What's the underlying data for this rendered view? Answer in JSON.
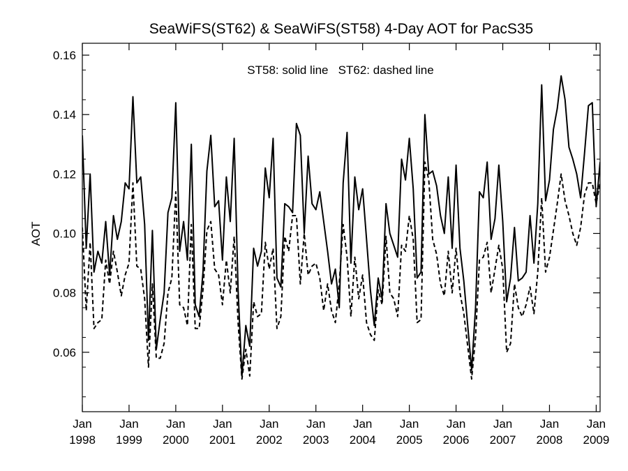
{
  "chart_data": {
    "type": "line",
    "title": "SeaWiFS(ST62) & SeaWiFS(ST58) 4-Day AOT for PacS35",
    "annotation": "ST58: solid line   ST62: dashed line",
    "xlabel": "",
    "ylabel": "AOT",
    "xlim": [
      "1998-01-01",
      "2009-02-01"
    ],
    "ylim": [
      0.04,
      0.164
    ],
    "yticks": [
      "0.06",
      "0.08",
      "0.10",
      "0.12",
      "0.14",
      "0.16"
    ],
    "xticks": [
      {
        "month": "Jan",
        "year": "1998"
      },
      {
        "month": "Jan",
        "year": "1999"
      },
      {
        "month": "Jan",
        "year": "2000"
      },
      {
        "month": "Jan",
        "year": "2001"
      },
      {
        "month": "Jan",
        "year": "2002"
      },
      {
        "month": "Jan",
        "year": "2003"
      },
      {
        "month": "Jan",
        "year": "2004"
      },
      {
        "month": "Jan",
        "year": "2005"
      },
      {
        "month": "Jan",
        "year": "2006"
      },
      {
        "month": "Jan",
        "year": "2007"
      },
      {
        "month": "Jan",
        "year": "2008"
      },
      {
        "month": "Jan",
        "year": "2009"
      }
    ],
    "series": [
      {
        "name": "ST58",
        "style": "solid",
        "color": "#000000",
        "points": [
          [
            "1998-01-01",
            0.133
          ],
          [
            "1998-02-01",
            0.095
          ],
          [
            "1998-03-01",
            0.12
          ],
          [
            "1998-04-01",
            0.087
          ],
          [
            "1998-05-01",
            0.094
          ],
          [
            "1998-06-01",
            0.09
          ],
          [
            "1998-07-01",
            0.104
          ],
          [
            "1998-08-01",
            0.086
          ],
          [
            "1998-09-01",
            0.106
          ],
          [
            "1998-10-01",
            0.098
          ],
          [
            "1998-11-01",
            0.104
          ],
          [
            "1998-12-01",
            0.117
          ],
          [
            "1999-01-01",
            0.115
          ],
          [
            "1999-02-01",
            0.146
          ],
          [
            "1999-03-01",
            0.117
          ],
          [
            "1999-04-01",
            0.119
          ],
          [
            "1999-05-01",
            0.103
          ],
          [
            "1999-06-01",
            0.064
          ],
          [
            "1999-07-01",
            0.101
          ],
          [
            "1999-08-01",
            0.061
          ],
          [
            "1999-09-01",
            0.071
          ],
          [
            "1999-10-01",
            0.08
          ],
          [
            "1999-11-01",
            0.107
          ],
          [
            "1999-12-01",
            0.112
          ],
          [
            "2000-01-01",
            0.144
          ],
          [
            "2000-02-01",
            0.094
          ],
          [
            "2000-03-01",
            0.104
          ],
          [
            "2000-04-01",
            0.091
          ],
          [
            "2000-05-01",
            0.13
          ],
          [
            "2000-06-01",
            0.076
          ],
          [
            "2000-07-01",
            0.072
          ],
          [
            "2000-08-01",
            0.087
          ],
          [
            "2000-09-01",
            0.121
          ],
          [
            "2000-10-01",
            0.133
          ],
          [
            "2000-11-01",
            0.109
          ],
          [
            "2000-12-01",
            0.111
          ],
          [
            "2001-01-01",
            0.091
          ],
          [
            "2001-02-01",
            0.119
          ],
          [
            "2001-03-01",
            0.104
          ],
          [
            "2001-04-01",
            0.132
          ],
          [
            "2001-05-01",
            0.081
          ],
          [
            "2001-06-01",
            0.052
          ],
          [
            "2001-07-01",
            0.069
          ],
          [
            "2001-08-01",
            0.062
          ],
          [
            "2001-09-01",
            0.095
          ],
          [
            "2001-10-01",
            0.089
          ],
          [
            "2001-11-01",
            0.094
          ],
          [
            "2001-12-01",
            0.122
          ],
          [
            "2002-01-01",
            0.112
          ],
          [
            "2002-02-01",
            0.132
          ],
          [
            "2002-03-01",
            0.085
          ],
          [
            "2002-04-01",
            0.082
          ],
          [
            "2002-05-01",
            0.11
          ],
          [
            "2002-06-01",
            0.109
          ],
          [
            "2002-07-01",
            0.107
          ],
          [
            "2002-08-01",
            0.137
          ],
          [
            "2002-09-01",
            0.133
          ],
          [
            "2002-10-01",
            0.1
          ],
          [
            "2002-11-01",
            0.126
          ],
          [
            "2002-12-01",
            0.11
          ],
          [
            "2003-01-01",
            0.108
          ],
          [
            "2003-02-01",
            0.114
          ],
          [
            "2003-03-01",
            0.104
          ],
          [
            "2003-04-01",
            0.094
          ],
          [
            "2003-05-01",
            0.083
          ],
          [
            "2003-06-01",
            0.088
          ],
          [
            "2003-07-01",
            0.075
          ],
          [
            "2003-08-01",
            0.117
          ],
          [
            "2003-09-01",
            0.134
          ],
          [
            "2003-10-01",
            0.09
          ],
          [
            "2003-11-01",
            0.119
          ],
          [
            "2003-12-01",
            0.108
          ],
          [
            "2004-01-01",
            0.115
          ],
          [
            "2004-02-01",
            0.098
          ],
          [
            "2004-03-01",
            0.081
          ],
          [
            "2004-04-01",
            0.069
          ],
          [
            "2004-05-01",
            0.085
          ],
          [
            "2004-06-01",
            0.078
          ],
          [
            "2004-07-01",
            0.11
          ],
          [
            "2004-08-01",
            0.1
          ],
          [
            "2004-09-01",
            0.096
          ],
          [
            "2004-10-01",
            0.092
          ],
          [
            "2004-11-01",
            0.125
          ],
          [
            "2004-12-01",
            0.118
          ],
          [
            "2005-01-01",
            0.132
          ],
          [
            "2005-02-01",
            0.115
          ],
          [
            "2005-03-01",
            0.085
          ],
          [
            "2005-04-01",
            0.087
          ],
          [
            "2005-05-01",
            0.14
          ],
          [
            "2005-06-01",
            0.12
          ],
          [
            "2005-07-01",
            0.121
          ],
          [
            "2005-08-01",
            0.116
          ],
          [
            "2005-09-01",
            0.106
          ],
          [
            "2005-10-01",
            0.1
          ],
          [
            "2005-11-01",
            0.119
          ],
          [
            "2005-12-01",
            0.095
          ],
          [
            "2006-01-01",
            0.123
          ],
          [
            "2006-02-01",
            0.095
          ],
          [
            "2006-03-01",
            0.084
          ],
          [
            "2006-04-01",
            0.069
          ],
          [
            "2006-05-01",
            0.054
          ],
          [
            "2006-06-01",
            0.075
          ],
          [
            "2006-07-01",
            0.114
          ],
          [
            "2006-08-01",
            0.112
          ],
          [
            "2006-09-01",
            0.124
          ],
          [
            "2006-10-01",
            0.098
          ],
          [
            "2006-11-01",
            0.105
          ],
          [
            "2006-12-01",
            0.123
          ],
          [
            "2007-01-01",
            0.104
          ],
          [
            "2007-02-01",
            0.077
          ],
          [
            "2007-03-01",
            0.085
          ],
          [
            "2007-04-01",
            0.102
          ],
          [
            "2007-05-01",
            0.084
          ],
          [
            "2007-06-01",
            0.085
          ],
          [
            "2007-07-01",
            0.087
          ],
          [
            "2007-08-01",
            0.106
          ],
          [
            "2007-09-01",
            0.09
          ],
          [
            "2007-10-01",
            0.11
          ],
          [
            "2007-11-01",
            0.15
          ],
          [
            "2007-12-01",
            0.111
          ],
          [
            "2008-01-01",
            0.118
          ],
          [
            "2008-02-01",
            0.135
          ],
          [
            "2008-03-01",
            0.142
          ],
          [
            "2008-04-01",
            0.153
          ],
          [
            "2008-05-01",
            0.145
          ],
          [
            "2008-06-01",
            0.129
          ],
          [
            "2008-07-01",
            0.125
          ],
          [
            "2008-08-01",
            0.12
          ],
          [
            "2008-09-01",
            0.112
          ],
          [
            "2008-10-01",
            0.127
          ],
          [
            "2008-11-01",
            0.143
          ],
          [
            "2008-12-01",
            0.144
          ],
          [
            "2009-01-01",
            0.109
          ],
          [
            "2009-02-01",
            0.124
          ]
        ]
      },
      {
        "name": "ST62",
        "style": "dashed",
        "color": "#000000",
        "points": [
          [
            "1998-01-01",
            0.102
          ],
          [
            "1998-02-01",
            0.074
          ],
          [
            "1998-03-01",
            0.097
          ],
          [
            "1998-04-01",
            0.068
          ],
          [
            "1998-05-01",
            0.07
          ],
          [
            "1998-06-01",
            0.071
          ],
          [
            "1998-07-01",
            0.091
          ],
          [
            "1998-08-01",
            0.083
          ],
          [
            "1998-09-01",
            0.094
          ],
          [
            "1998-10-01",
            0.087
          ],
          [
            "1998-11-01",
            0.079
          ],
          [
            "1998-12-01",
            0.086
          ],
          [
            "1999-01-01",
            0.09
          ],
          [
            "1999-02-01",
            0.117
          ],
          [
            "1999-03-01",
            0.089
          ],
          [
            "1999-04-01",
            0.088
          ],
          [
            "1999-05-01",
            0.078
          ],
          [
            "1999-06-01",
            0.055
          ],
          [
            "1999-07-01",
            0.083
          ],
          [
            "1999-08-01",
            0.058
          ],
          [
            "1999-09-01",
            0.058
          ],
          [
            "1999-10-01",
            0.063
          ],
          [
            "1999-11-01",
            0.08
          ],
          [
            "1999-12-01",
            0.085
          ],
          [
            "2000-01-01",
            0.114
          ],
          [
            "2000-02-01",
            0.076
          ],
          [
            "2000-03-01",
            0.075
          ],
          [
            "2000-04-01",
            0.069
          ],
          [
            "2000-05-01",
            0.103
          ],
          [
            "2000-06-01",
            0.068
          ],
          [
            "2000-07-01",
            0.068
          ],
          [
            "2000-08-01",
            0.081
          ],
          [
            "2000-09-01",
            0.101
          ],
          [
            "2000-10-01",
            0.104
          ],
          [
            "2000-11-01",
            0.088
          ],
          [
            "2000-12-01",
            0.086
          ],
          [
            "2001-01-01",
            0.076
          ],
          [
            "2001-02-01",
            0.091
          ],
          [
            "2001-03-01",
            0.08
          ],
          [
            "2001-04-01",
            0.099
          ],
          [
            "2001-05-01",
            0.07
          ],
          [
            "2001-06-01",
            0.051
          ],
          [
            "2001-07-01",
            0.061
          ],
          [
            "2001-08-01",
            0.052
          ],
          [
            "2001-09-01",
            0.077
          ],
          [
            "2001-10-01",
            0.072
          ],
          [
            "2001-11-01",
            0.073
          ],
          [
            "2001-12-01",
            0.097
          ],
          [
            "2002-01-01",
            0.088
          ],
          [
            "2002-02-01",
            0.095
          ],
          [
            "2002-03-01",
            0.068
          ],
          [
            "2002-04-01",
            0.072
          ],
          [
            "2002-05-01",
            0.099
          ],
          [
            "2002-06-01",
            0.094
          ],
          [
            "2002-07-01",
            0.106
          ],
          [
            "2002-08-01",
            0.106
          ],
          [
            "2002-09-01",
            0.083
          ],
          [
            "2002-10-01",
            0.1
          ],
          [
            "2002-11-01",
            0.086
          ],
          [
            "2002-12-01",
            0.089
          ],
          [
            "2003-01-01",
            0.09
          ],
          [
            "2003-02-01",
            0.085
          ],
          [
            "2003-03-01",
            0.074
          ],
          [
            "2003-04-01",
            0.083
          ],
          [
            "2003-05-01",
            0.074
          ],
          [
            "2003-06-01",
            0.07
          ],
          [
            "2003-07-01",
            0.083
          ],
          [
            "2003-08-01",
            0.103
          ],
          [
            "2003-09-01",
            0.092
          ],
          [
            "2003-10-01",
            0.072
          ],
          [
            "2003-11-01",
            0.092
          ],
          [
            "2003-12-01",
            0.078
          ],
          [
            "2004-01-01",
            0.086
          ],
          [
            "2004-02-01",
            0.07
          ],
          [
            "2004-03-01",
            0.066
          ],
          [
            "2004-04-01",
            0.064
          ],
          [
            "2004-05-01",
            0.081
          ],
          [
            "2004-06-01",
            0.076
          ],
          [
            "2004-07-01",
            0.099
          ],
          [
            "2004-08-01",
            0.08
          ],
          [
            "2004-09-01",
            0.078
          ],
          [
            "2004-10-01",
            0.072
          ],
          [
            "2004-11-01",
            0.096
          ],
          [
            "2004-12-01",
            0.094
          ],
          [
            "2005-01-01",
            0.106
          ],
          [
            "2005-02-01",
            0.098
          ],
          [
            "2005-03-01",
            0.07
          ],
          [
            "2005-04-01",
            0.071
          ],
          [
            "2005-05-01",
            0.124
          ],
          [
            "2005-06-01",
            0.118
          ],
          [
            "2005-07-01",
            0.098
          ],
          [
            "2005-08-01",
            0.093
          ],
          [
            "2005-09-01",
            0.083
          ],
          [
            "2005-10-01",
            0.079
          ],
          [
            "2005-11-01",
            0.094
          ],
          [
            "2005-12-01",
            0.08
          ],
          [
            "2006-01-01",
            0.095
          ],
          [
            "2006-02-01",
            0.08
          ],
          [
            "2006-03-01",
            0.073
          ],
          [
            "2006-04-01",
            0.062
          ],
          [
            "2006-05-01",
            0.051
          ],
          [
            "2006-06-01",
            0.065
          ],
          [
            "2006-07-01",
            0.091
          ],
          [
            "2006-08-01",
            0.092
          ],
          [
            "2006-09-01",
            0.097
          ],
          [
            "2006-10-01",
            0.08
          ],
          [
            "2006-11-01",
            0.088
          ],
          [
            "2006-12-01",
            0.096
          ],
          [
            "2007-01-01",
            0.088
          ],
          [
            "2007-02-01",
            0.06
          ],
          [
            "2007-03-01",
            0.063
          ],
          [
            "2007-04-01",
            0.083
          ],
          [
            "2007-05-01",
            0.075
          ],
          [
            "2007-06-01",
            0.072
          ],
          [
            "2007-07-01",
            0.076
          ],
          [
            "2007-08-01",
            0.082
          ],
          [
            "2007-09-01",
            0.073
          ],
          [
            "2007-10-01",
            0.087
          ],
          [
            "2007-11-01",
            0.112
          ],
          [
            "2007-12-01",
            0.087
          ],
          [
            "2008-01-01",
            0.092
          ],
          [
            "2008-02-01",
            0.101
          ],
          [
            "2008-03-01",
            0.11
          ],
          [
            "2008-04-01",
            0.12
          ],
          [
            "2008-05-01",
            0.111
          ],
          [
            "2008-06-01",
            0.106
          ],
          [
            "2008-07-01",
            0.1
          ],
          [
            "2008-08-01",
            0.096
          ],
          [
            "2008-09-01",
            0.102
          ],
          [
            "2008-10-01",
            0.113
          ],
          [
            "2008-11-01",
            0.117
          ],
          [
            "2008-12-01",
            0.117
          ],
          [
            "2009-01-01",
            0.11
          ],
          [
            "2009-02-01",
            0.117
          ]
        ]
      }
    ]
  }
}
